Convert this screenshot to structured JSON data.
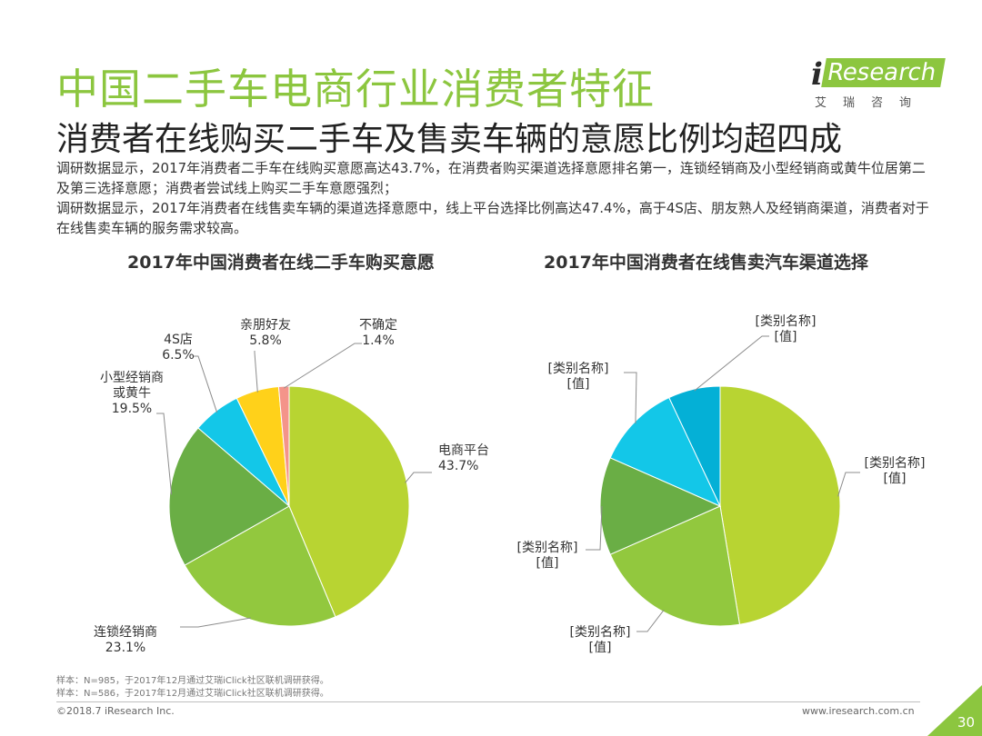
{
  "header": {
    "title": "中国二手车电商行业消费者特征",
    "subtitle": "消费者在线购买二手车及售卖车辆的意愿比例均超四成"
  },
  "logo": {
    "brand_i": "i",
    "brand_research": "Research",
    "brand_cn": "艾瑞咨询"
  },
  "description": [
    "调研数据显示，2017年消费者二手车在线购买意愿高达43.7%，在消费者购买渠道选择意愿排名第一，连锁经销商及小型经销商或黄牛位居第二及第三选择意愿；消费者尝试线上购买二手车意愿强烈；",
    "调研数据显示，2017年消费者在线售卖车辆的渠道选择意愿中，线上平台选择比例高达47.4%，高于4S店、朋友熟人及经销商渠道，消费者对于在线售卖车辆的服务需求较高。"
  ],
  "chart_data": [
    {
      "type": "pie",
      "title": "2017年中国消费者在线二手车购买意愿",
      "unit": "%",
      "slices": [
        {
          "label": "电商平台",
          "value": 43.7,
          "value_label": "43.7%",
          "color": "#b8d432"
        },
        {
          "label": "连锁经销商",
          "value": 23.1,
          "value_label": "23.1%",
          "color": "#92c83e"
        },
        {
          "label": "小型经销商或黄牛",
          "label_lines": [
            "小型经销商",
            "或黄牛"
          ],
          "value": 19.5,
          "value_label": "19.5%",
          "color": "#6aae45"
        },
        {
          "label": "4S店",
          "value": 6.5,
          "value_label": "6.5%",
          "color": "#13c7e8"
        },
        {
          "label": "亲朋好友",
          "value": 5.8,
          "value_label": "5.8%",
          "color": "#ffd11a"
        },
        {
          "label": "不确定",
          "value": 1.4,
          "value_label": "1.4%",
          "color": "#f4948a"
        }
      ]
    },
    {
      "type": "pie",
      "title": "2017年中国消费者在线售卖汽车渠道选择",
      "slices": [
        {
          "label": "[类别名称]",
          "value_label": "[值]",
          "value": 47.4,
          "color": "#b8d432"
        },
        {
          "label": "[类别名称]",
          "value_label": "[值]",
          "value": 21.0,
          "color": "#92c83e"
        },
        {
          "label": "[类别名称]",
          "value_label": "[值]",
          "value": 13.2,
          "color": "#6aae45"
        },
        {
          "label": "[类别名称]",
          "value_label": "[值]",
          "value": 11.4,
          "color": "#13c7e8"
        },
        {
          "label": "[类别名称]",
          "value_label": "[值]",
          "value": 7.0,
          "color": "#04b0d6"
        }
      ]
    }
  ],
  "footnotes": [
    "样本：N=985，于2017年12月通过艾瑞iClick社区联机调研获得。",
    "样本：N=586，于2017年12月通过艾瑞iClick社区联机调研获得。"
  ],
  "footer": {
    "copyright": "©2018.7 iResearch Inc.",
    "website": "www.iresearch.com.cn",
    "page_number": "30"
  }
}
